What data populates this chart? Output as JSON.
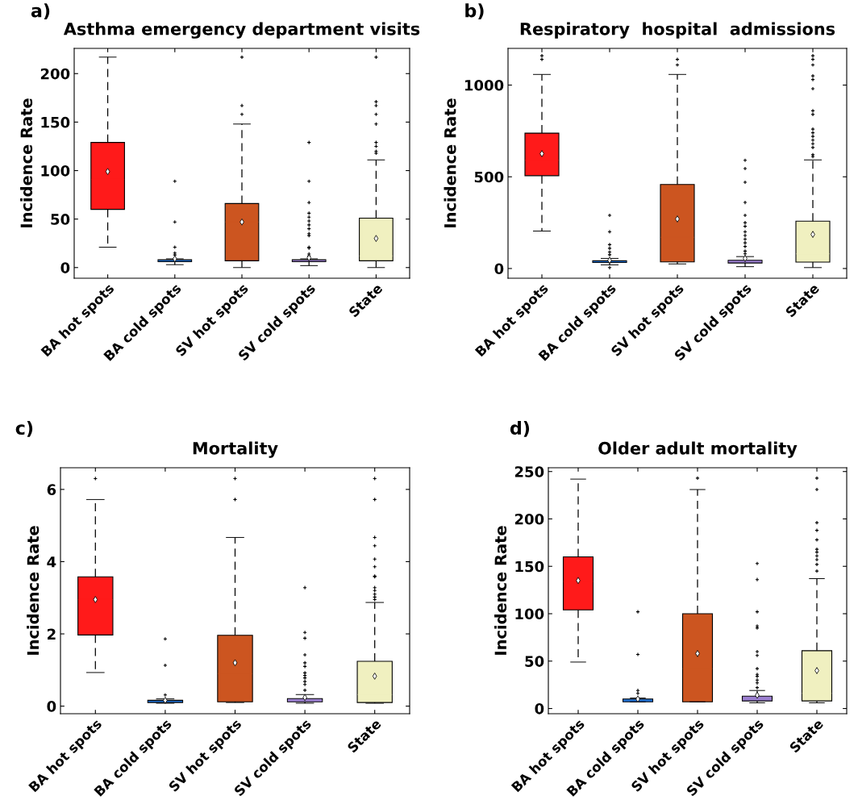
{
  "chart_data": [
    {
      "type": "box",
      "title": "Asthma emergency department visits",
      "ylabel": "Incidence Rate",
      "annotations": [
        "a)"
      ],
      "categories": [
        "BA hot spots",
        "BA cold spots",
        "SV hot spots",
        "SV cold spots",
        "State"
      ],
      "colors": [
        "#ff1a1a",
        "#1f6fd0",
        "#cc5520",
        "#9b7fd0",
        "#f0f0c0"
      ],
      "line_style": "dashed",
      "ylim": [
        -11,
        226
      ],
      "yticks": [
        0,
        50,
        100,
        150,
        200
      ],
      "boxes": [
        {
          "low": 21,
          "q1": 60,
          "median": 91,
          "q3": 129,
          "high": 217,
          "mean": 99
        },
        {
          "low": 3,
          "q1": 6,
          "median": 7,
          "q3": 8,
          "high": 9,
          "mean": 9,
          "outliers": [
            13,
            15,
            21,
            47,
            89
          ]
        },
        {
          "low": 0,
          "q1": 7,
          "median": 47,
          "q3": 66,
          "high": 148,
          "mean": 47,
          "outliers": [
            158,
            167,
            217
          ]
        },
        {
          "low": 2,
          "q1": 6,
          "median": 7,
          "q3": 8,
          "high": 9,
          "mean": 10,
          "outliers": [
            12,
            14,
            20,
            21,
            33,
            35,
            40,
            44,
            48,
            52,
            56,
            67,
            89,
            129
          ]
        },
        {
          "low": 0,
          "q1": 7,
          "median": 12,
          "q3": 51,
          "high": 111,
          "mean": 30,
          "outliers": [
            118,
            120,
            125,
            129,
            148,
            158,
            167,
            171,
            217
          ]
        }
      ]
    },
    {
      "type": "box",
      "title": "Respiratory  hospital  admissions",
      "ylabel": "Incidence Rate",
      "annotations": [
        "b)"
      ],
      "categories": [
        "BA hot spots",
        "BA cold spots",
        "SV hot spots",
        "SV cold spots",
        "State"
      ],
      "colors": [
        "#ff1a1a",
        "#1f6fd0",
        "#cc5520",
        "#9b7fd0",
        "#f0f0c0"
      ],
      "line_style": "dashed",
      "ylim": [
        -53,
        1200
      ],
      "yticks": [
        0,
        500,
        1000
      ],
      "boxes": [
        {
          "low": 204,
          "q1": 506,
          "median": 590,
          "q3": 738,
          "high": 1058,
          "mean": 626,
          "outliers": [
            1140,
            1160
          ]
        },
        {
          "low": 20,
          "q1": 33,
          "median": 38,
          "q3": 42,
          "high": 55,
          "mean": 45,
          "outliers": [
            5,
            75,
            90,
            110,
            130,
            200,
            290
          ]
        },
        {
          "low": 25,
          "q1": 36,
          "median": 170,
          "q3": 458,
          "high": 1058,
          "mean": 270,
          "outliers": [
            1110,
            1140
          ]
        },
        {
          "low": 10,
          "q1": 30,
          "median": 38,
          "q3": 45,
          "high": 65,
          "mean": 55,
          "outliers": [
            80,
            95,
            120,
            140,
            160,
            180,
            200,
            230,
            250,
            290,
            360,
            470,
            545,
            590
          ]
        },
        {
          "low": 5,
          "q1": 35,
          "median": 80,
          "q3": 258,
          "high": 592,
          "mean": 186,
          "outliers": [
            610,
            620,
            660,
            680,
            700,
            720,
            740,
            760,
            840,
            860,
            980,
            1030,
            1050,
            1110,
            1140,
            1160
          ]
        }
      ]
    },
    {
      "type": "box",
      "title": "Mortality",
      "ylabel": "Incidence Rate",
      "annotations": [
        "c)"
      ],
      "categories": [
        "BA hot spots",
        "BA cold spots",
        "SV hot spots",
        "SV cold spots",
        "State"
      ],
      "colors": [
        "#ff1a1a",
        "#1f6fd0",
        "#cc5520",
        "#9b7fd0",
        "#f0f0c0"
      ],
      "line_style": "dashed",
      "ylim": [
        -0.21,
        6.6
      ],
      "yticks": [
        0,
        2,
        4,
        6
      ],
      "boxes": [
        {
          "low": 0.93,
          "q1": 1.97,
          "median": 2.95,
          "q3": 3.58,
          "high": 5.72,
          "mean": 2.95,
          "outliers": [
            6.3
          ]
        },
        {
          "low": 0.08,
          "q1": 0.1,
          "median": 0.13,
          "q3": 0.16,
          "high": 0.2,
          "mean": 0.16,
          "outliers": [
            0.31,
            1.13,
            1.86
          ]
        },
        {
          "low": 0.1,
          "q1": 0.12,
          "median": 0.9,
          "q3": 1.96,
          "high": 4.67,
          "mean": 1.2,
          "outliers": [
            5.72,
            6.3
          ]
        },
        {
          "low": 0.08,
          "q1": 0.12,
          "median": 0.15,
          "q3": 0.21,
          "high": 0.32,
          "mean": 0.24,
          "outliers": [
            0.44,
            0.6,
            0.68,
            0.78,
            0.85,
            0.92,
            1.1,
            1.2,
            1.42,
            1.88,
            2.04,
            3.28
          ]
        },
        {
          "low": 0.08,
          "q1": 0.1,
          "median": 0.32,
          "q3": 1.24,
          "high": 2.87,
          "mean": 0.83,
          "outliers": [
            2.95,
            3.02,
            3.1,
            3.2,
            3.28,
            3.58,
            3.6,
            3.86,
            4.07,
            4.44,
            4.67,
            5.72,
            6.3
          ]
        }
      ]
    },
    {
      "type": "box",
      "title": "Older adult mortality",
      "ylabel": "Incidence Rate",
      "annotations": [
        "d)"
      ],
      "categories": [
        "BA hot spots",
        "BA cold spots",
        "SV hot spots",
        "SV cold spots",
        "State"
      ],
      "colors": [
        "#ff1a1a",
        "#1f6fd0",
        "#cc5520",
        "#9b7fd0",
        "#f0f0c0"
      ],
      "line_style": "dashed",
      "ylim": [
        -5.5,
        254
      ],
      "yticks": [
        0,
        50,
        100,
        150,
        200,
        250
      ],
      "boxes": [
        {
          "low": 49,
          "q1": 104,
          "median": 134,
          "q3": 160,
          "high": 242,
          "mean": 135
        },
        {
          "low": 7,
          "q1": 7,
          "median": 8,
          "q3": 10,
          "high": 11,
          "mean": 10,
          "outliers": [
            16,
            19,
            57,
            102
          ]
        },
        {
          "low": 7,
          "q1": 7,
          "median": 42,
          "q3": 100,
          "high": 231,
          "mean": 58,
          "outliers": [
            243
          ]
        },
        {
          "low": 6,
          "q1": 8,
          "median": 9,
          "q3": 13,
          "high": 19,
          "mean": 14,
          "outliers": [
            22,
            27,
            30,
            34,
            36,
            42,
            56,
            60,
            85,
            87,
            102,
            136,
            153
          ]
        },
        {
          "low": 6,
          "q1": 8,
          "median": 16,
          "q3": 61,
          "high": 137,
          "mean": 40,
          "outliers": [
            145,
            152,
            157,
            161,
            165,
            168,
            178,
            188,
            196,
            231,
            243
          ]
        }
      ]
    }
  ]
}
